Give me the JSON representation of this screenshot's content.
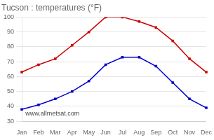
{
  "chart_data": {
    "type": "line",
    "title": "Tucson : temperatures (°F)",
    "categories": [
      "Jan",
      "Feb",
      "Mar",
      "Apr",
      "May",
      "Jun",
      "Jul",
      "Aug",
      "Sep",
      "Oct",
      "Nov",
      "Dec"
    ],
    "series": [
      {
        "color": "#cc0000",
        "marker": "square",
        "line_style": "solid",
        "values": [
          63,
          68,
          72,
          81,
          90,
          100,
          100,
          97,
          93,
          84,
          72,
          63
        ]
      },
      {
        "color": "#0000cc",
        "marker": "square",
        "line_style": "solid",
        "values": [
          38,
          41,
          45,
          50,
          57,
          68,
          73,
          73,
          67,
          56,
          45,
          39
        ]
      }
    ],
    "ylim": [
      30,
      100
    ],
    "yticks": [
      30,
      40,
      50,
      60,
      70,
      80,
      90,
      100
    ],
    "grid": "y",
    "annotation": "www.allmetsat.com"
  }
}
